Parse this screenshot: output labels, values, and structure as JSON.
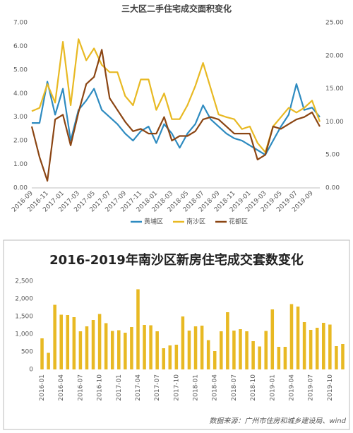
{
  "chart_data": [
    {
      "type": "line",
      "title": "三大区二手住宅成交面积变化",
      "categories": [
        "2016-09",
        null,
        "2016-11",
        null,
        "2017-01",
        null,
        "2017-03",
        null,
        "2017-05",
        null,
        "2017-07",
        null,
        "2017-09",
        null,
        "2017-11",
        null,
        "2018-01",
        null,
        "2018-03",
        null,
        "2018-05",
        null,
        "2018-07",
        null,
        "2018-09",
        null,
        "2018-11",
        null,
        "2019-01",
        null,
        "2019-03",
        null,
        "2019-05",
        null,
        "2019-07",
        null,
        "2019-09",
        null
      ],
      "series": [
        {
          "name": "黄埔区",
          "color": "#2e8bc0",
          "values": [
            2.75,
            2.75,
            4.5,
            3.1,
            4.2,
            2.0,
            3.3,
            3.7,
            4.2,
            3.3,
            3.0,
            2.7,
            2.3,
            2.0,
            2.4,
            2.6,
            1.9,
            2.7,
            2.3,
            1.7,
            2.3,
            2.7,
            3.5,
            2.9,
            2.6,
            2.3,
            2.1,
            2.0,
            1.8,
            1.6,
            1.4,
            2.0,
            2.6,
            3.1,
            4.4,
            3.3,
            3.4,
            3.0
          ]
        },
        {
          "name": "南沙区",
          "color": "#e8b923",
          "axis": "y2",
          "values": [
            11.6,
            12.1,
            15.7,
            12.9,
            22.1,
            12.5,
            22.5,
            19.3,
            21.1,
            18.6,
            17.5,
            17.5,
            13.9,
            12.5,
            16.4,
            16.4,
            11.8,
            14.3,
            10.4,
            10.4,
            12.5,
            15.4,
            18.9,
            15.0,
            11.1,
            10.7,
            10.4,
            8.9,
            9.3,
            6.8,
            5.4,
            9.3,
            10.7,
            12.1,
            11.4,
            12.1,
            13.2,
            10.0
          ]
        },
        {
          "name": "花都区",
          "color": "#8b4513",
          "values": [
            2.6,
            1.3,
            0.3,
            2.9,
            3.1,
            1.8,
            3.2,
            4.4,
            4.7,
            5.85,
            3.8,
            3.3,
            2.8,
            2.4,
            2.5,
            2.3,
            2.3,
            3.0,
            2.0,
            2.2,
            2.2,
            2.4,
            2.9,
            3.0,
            2.9,
            2.6,
            2.3,
            2.3,
            2.3,
            1.2,
            1.4,
            2.6,
            2.5,
            2.7,
            2.9,
            3.0,
            3.2,
            2.6
          ]
        }
      ],
      "ylim": [
        0,
        7
      ],
      "yticks": [
        {
          "value": 0,
          "label": "0.00"
        },
        {
          "value": 1,
          "label": "1.00"
        },
        {
          "value": 2,
          "label": "2.00"
        },
        {
          "value": 3,
          "label": "3.00"
        },
        {
          "value": 4,
          "label": "4.00"
        },
        {
          "value": 5,
          "label": "5.00"
        },
        {
          "value": 6,
          "label": "6.00"
        },
        {
          "value": 7,
          "label": "7.00"
        }
      ],
      "y2lim": [
        0,
        25
      ],
      "y2ticks": [
        {
          "value": 0,
          "label": "0.00"
        },
        {
          "value": 5,
          "label": "5.00"
        },
        {
          "value": 10,
          "label": "10.00"
        },
        {
          "value": 15,
          "label": "15.00"
        },
        {
          "value": 20,
          "label": "20.00"
        },
        {
          "value": 25,
          "label": "25.00"
        }
      ],
      "grid": false,
      "legend": "bottom"
    },
    {
      "type": "bar",
      "title": "2016-2019年南沙区新房住宅成交套数变化",
      "categories": [
        "2016-01",
        null,
        null,
        "2016-04",
        null,
        null,
        "2016-07",
        null,
        null,
        "2016-10",
        null,
        null,
        "2017-01",
        null,
        null,
        "2017-04",
        null,
        null,
        "2017-07",
        null,
        null,
        "2017-10",
        null,
        null,
        "2018-01",
        null,
        null,
        "2018-04",
        null,
        null,
        "2018-07",
        null,
        null,
        "2018-10",
        null,
        null,
        "2019-01",
        null,
        null,
        "2019-04",
        null,
        null,
        "2019-07",
        null,
        null,
        "2019-10",
        null,
        null
      ],
      "values": [
        880,
        470,
        1830,
        1550,
        1540,
        1480,
        1080,
        1220,
        1400,
        1570,
        1310,
        1090,
        1110,
        1040,
        1200,
        2270,
        1260,
        1250,
        1080,
        600,
        680,
        700,
        1500,
        1100,
        1220,
        1240,
        830,
        520,
        1080,
        1620,
        1100,
        1140,
        1080,
        800,
        650,
        1090,
        1700,
        640,
        640,
        1850,
        1780,
        1340,
        1120,
        1180,
        1320,
        1270,
        660,
        720
      ],
      "color": "#e8b923",
      "ylim": [
        0,
        2500
      ],
      "yticks": [
        0,
        500,
        {
          "value": 1000,
          "label": "1,000"
        },
        {
          "value": 1500,
          "label": "1,500"
        },
        {
          "value": 2000,
          "label": "2,000"
        },
        {
          "value": 2500,
          "label": "2,500"
        }
      ],
      "grid": false,
      "source": "数据来源：广州市住房和城乡建设局、wind"
    }
  ]
}
